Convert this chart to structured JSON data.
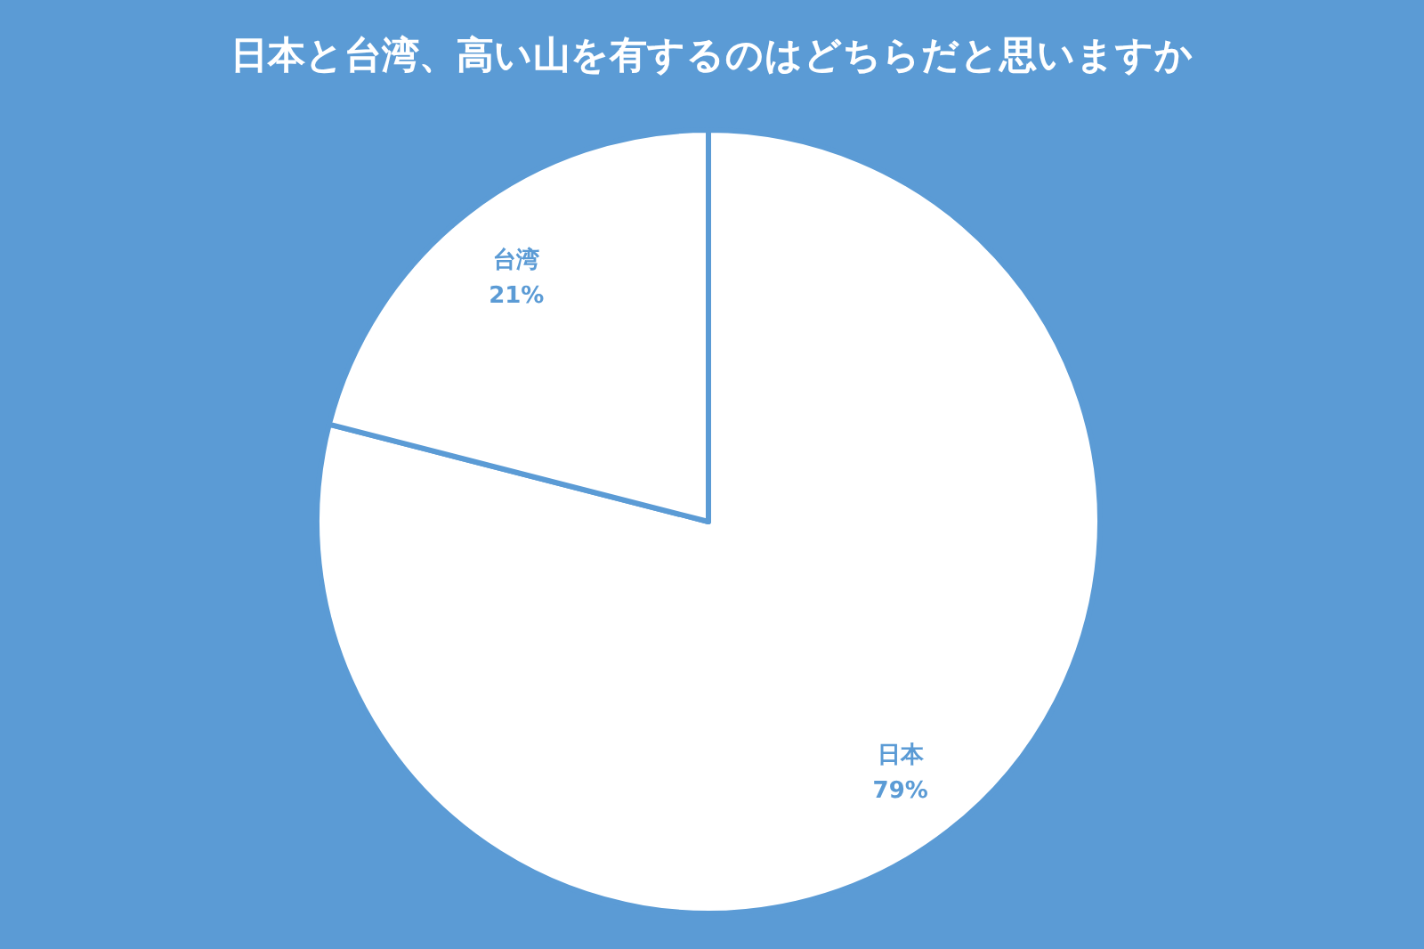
{
  "chart_data": {
    "type": "pie",
    "title": "日本と台湾、高い山を有するのはどちらだと思いますか",
    "categories": [
      "日本",
      "台湾"
    ],
    "values": [
      79,
      21
    ],
    "colors": [
      "#ffffff",
      "#ffffff"
    ],
    "value_labels": [
      "79%",
      "21%"
    ],
    "legend": false
  }
}
